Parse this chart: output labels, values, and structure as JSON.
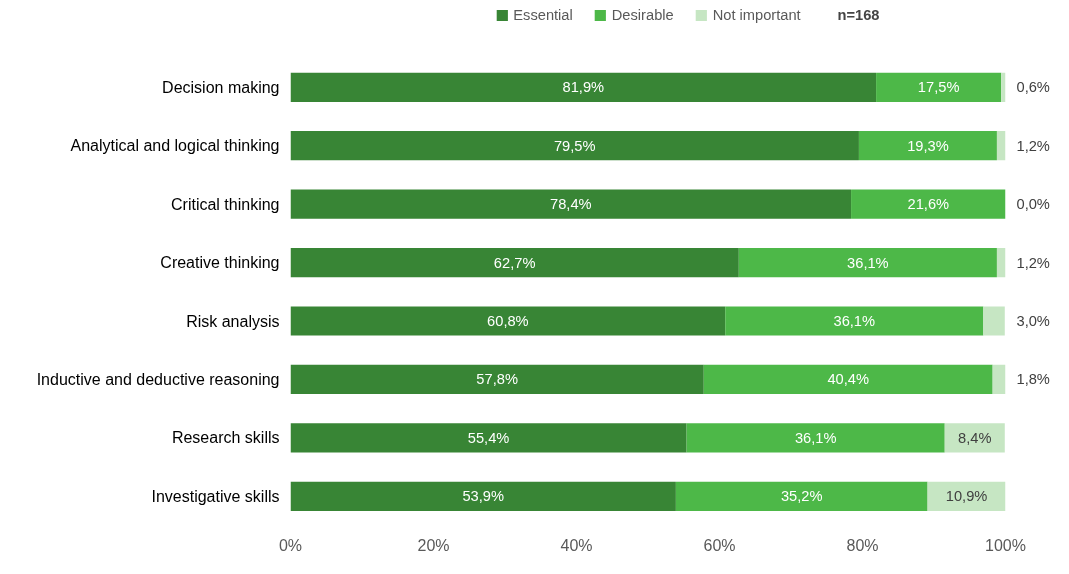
{
  "chart_data": {
    "type": "bar",
    "orientation": "horizontal",
    "stacked": true,
    "categories": [
      "Decision making",
      "Analytical and logical thinking",
      "Critical thinking",
      "Creative thinking",
      "Risk analysis",
      "Inductive and deductive reasoning",
      "Research skills",
      "Investigative skills"
    ],
    "series": [
      {
        "name": "Essential",
        "color": "#388535",
        "values": [
          81.9,
          79.5,
          78.4,
          62.7,
          60.8,
          57.8,
          55.4,
          53.9
        ],
        "value_labels": [
          "81,9%",
          "79,5%",
          "78,4%",
          "62,7%",
          "60,8%",
          "57,8%",
          "55,4%",
          "53,9%"
        ]
      },
      {
        "name": "Desirable",
        "color": "#4db848",
        "values": [
          17.5,
          19.3,
          21.6,
          36.1,
          36.1,
          40.4,
          36.1,
          35.2
        ],
        "value_labels": [
          "17,5%",
          "19,3%",
          "21,6%",
          "36,1%",
          "36,1%",
          "40,4%",
          "36,1%",
          "35,2%"
        ]
      },
      {
        "name": "Not important",
        "color": "#c6e6c3",
        "values": [
          0.6,
          1.2,
          0.0,
          1.2,
          3.0,
          1.8,
          8.4,
          10.9
        ],
        "value_labels": [
          "0,6%",
          "1,2%",
          "0,0%",
          "1,2%",
          "3,0%",
          "1,8%",
          "8,4%",
          "10,9%"
        ]
      }
    ],
    "xlim": [
      0,
      100
    ],
    "xticks": [
      {
        "value": 0,
        "label": "0%"
      },
      {
        "value": 20,
        "label": "20%"
      },
      {
        "value": 40,
        "label": "40%"
      },
      {
        "value": 60,
        "label": "60%"
      },
      {
        "value": 80,
        "label": "80%"
      },
      {
        "value": 100,
        "label": "100%"
      }
    ],
    "legend": "top",
    "grid": false,
    "annotations": [
      "n=168"
    ]
  }
}
